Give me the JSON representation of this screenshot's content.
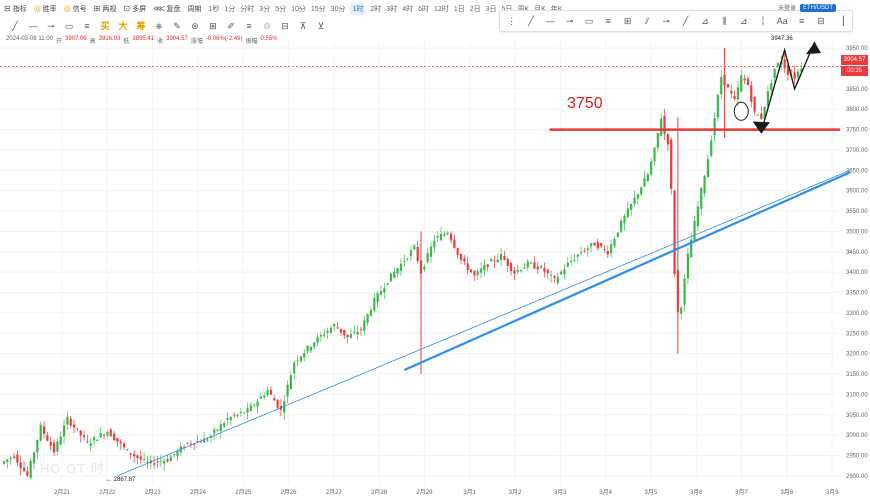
{
  "toolbar": {
    "items": [
      {
        "icon": "chart-indicator-icon",
        "glyph": "⊟",
        "label": "指标"
      },
      {
        "icon": "coin-icon",
        "glyph": "◎",
        "label": "胜率",
        "accent": true
      },
      {
        "icon": "coin-icon",
        "glyph": "◎",
        "label": "信号",
        "accent": true
      },
      {
        "icon": "grid-icon",
        "glyph": "⊞",
        "label": "两视"
      },
      {
        "icon": "layers-icon",
        "glyph": "⊡",
        "label": "多屏"
      },
      {
        "icon": "replay-icon",
        "glyph": "⋘",
        "label": "复盘"
      },
      {
        "icon": "period-icon",
        "glyph": "",
        "label": "周期"
      }
    ],
    "timeframes": [
      "1秒",
      "1分",
      "分时",
      "3分",
      "5分",
      "10分",
      "15分",
      "30分",
      "1时",
      "2时",
      "3时",
      "4时",
      "6时",
      "12时",
      "1日",
      "2日",
      "3日",
      "5日",
      "周K",
      "月K",
      "年K"
    ],
    "active_timeframe": "1时"
  },
  "draw_toolbar": {
    "glyphs": [
      "╱",
      "—",
      "⊸",
      "▭",
      "≡",
      "⎈",
      "✎",
      "⊛",
      "⊞",
      "✐",
      "≡",
      "♲",
      "⊟",
      "⊼",
      "⊻"
    ],
    "accent_glyphs": [
      "买",
      "大",
      "筹"
    ]
  },
  "info_bar": {
    "time": "2024-03-08 11:00",
    "open_label": "开",
    "open": "3907.06",
    "high_label": "高",
    "high": "3916.93",
    "low_label": "低",
    "low": "3895.41",
    "close_label": "收",
    "close": "3904.57",
    "change_label": "涨幅",
    "change": "-0.06%(-2.49)",
    "amp_label": "振幅",
    "amp": "0.55%"
  },
  "draw_panel": {
    "glyphs": [
      "⋮",
      "╱",
      "—",
      "⊸",
      "▭",
      "≡",
      "⊞",
      "⫽",
      "⊸",
      "╱",
      "⊿",
      "⫼",
      "⊿",
      "╎",
      "Aa",
      "≡",
      "⊟",
      "▕"
    ]
  },
  "top_right": {
    "label": "未登录",
    "chip": "ETH/USDT"
  },
  "price_tag": "3904.57",
  "timer_tag": "00:35",
  "annotation_level": "3750",
  "high_marker": "3947.36",
  "low_marker": "2867.87",
  "watermark": "HO OT 时",
  "colors": {
    "up": "#3bb84a",
    "down": "#ef3b3b",
    "support_line": "#2f8fe8",
    "level_line": "#e53935",
    "arrow": "#1a1a1a",
    "dashed_price": "#ef3b3b"
  },
  "chart_data": {
    "type": "candlestick",
    "symbol": "ETH/USDT",
    "interval": "1时",
    "ylim": [
      2880,
      3970
    ],
    "yticks": [
      2900,
      2950,
      3000,
      3050,
      3100,
      3150,
      3200,
      3250,
      3300,
      3350,
      3400,
      3450,
      3500,
      3550,
      3600,
      3650,
      3700,
      3750,
      3800,
      3850,
      3900,
      3950
    ],
    "x_labels": [
      "2月21",
      "2月22",
      "2月23",
      "2月24",
      "2月25",
      "2月26",
      "2月27",
      "2月28",
      "2月29",
      "3月1",
      "3月2",
      "3月3",
      "3月4",
      "3月5",
      "3月6",
      "3月7",
      "3月8",
      "3月9"
    ],
    "price_path": [
      [
        0,
        2930
      ],
      [
        4,
        2950
      ],
      [
        8,
        2900
      ],
      [
        12,
        3020
      ],
      [
        16,
        2960
      ],
      [
        20,
        3040
      ],
      [
        26,
        2980
      ],
      [
        32,
        3010
      ],
      [
        38,
        2960
      ],
      [
        44,
        2930
      ],
      [
        50,
        2940
      ],
      [
        56,
        2980
      ],
      [
        62,
        2990
      ],
      [
        68,
        3040
      ],
      [
        74,
        3060
      ],
      [
        80,
        3110
      ],
      [
        84,
        3060
      ],
      [
        88,
        3180
      ],
      [
        94,
        3230
      ],
      [
        100,
        3270
      ],
      [
        104,
        3240
      ],
      [
        108,
        3260
      ],
      [
        112,
        3330
      ],
      [
        116,
        3380
      ],
      [
        120,
        3420
      ],
      [
        124,
        3460
      ],
      [
        126,
        3400
      ],
      [
        130,
        3480
      ],
      [
        134,
        3500
      ],
      [
        138,
        3430
      ],
      [
        142,
        3390
      ],
      [
        146,
        3420
      ],
      [
        150,
        3440
      ],
      [
        154,
        3400
      ],
      [
        158,
        3420
      ],
      [
        162,
        3410
      ],
      [
        166,
        3380
      ],
      [
        170,
        3420
      ],
      [
        174,
        3450
      ],
      [
        178,
        3470
      ],
      [
        182,
        3450
      ],
      [
        186,
        3520
      ],
      [
        190,
        3580
      ],
      [
        194,
        3640
      ],
      [
        196,
        3700
      ],
      [
        198,
        3780
      ],
      [
        199,
        3740
      ],
      [
        200,
        3720
      ],
      [
        201,
        3600
      ],
      [
        202,
        3400
      ],
      [
        203,
        3300
      ],
      [
        204,
        3320
      ],
      [
        206,
        3440
      ],
      [
        208,
        3520
      ],
      [
        210,
        3600
      ],
      [
        212,
        3680
      ],
      [
        214,
        3780
      ],
      [
        216,
        3880
      ],
      [
        218,
        3850
      ],
      [
        220,
        3820
      ],
      [
        222,
        3880
      ],
      [
        224,
        3860
      ],
      [
        226,
        3790
      ],
      [
        228,
        3780
      ],
      [
        230,
        3840
      ],
      [
        232,
        3900
      ],
      [
        234,
        3920
      ],
      [
        236,
        3890
      ],
      [
        238,
        3880
      ],
      [
        240,
        3904.57
      ]
    ],
    "spikes": [
      {
        "at": 125,
        "low": 3150,
        "high": 3500
      },
      {
        "at": 202,
        "low": 3200,
        "high": 3780
      },
      {
        "at": 216,
        "low": 3730,
        "high": 3950
      }
    ],
    "last_price": 3904.57,
    "high_marker": 3947.36,
    "low_marker": 2867.87,
    "horizontal_level": 3750,
    "support_trend": {
      "from": [
        34,
        2900
      ],
      "to": [
        250,
        3650
      ]
    }
  }
}
